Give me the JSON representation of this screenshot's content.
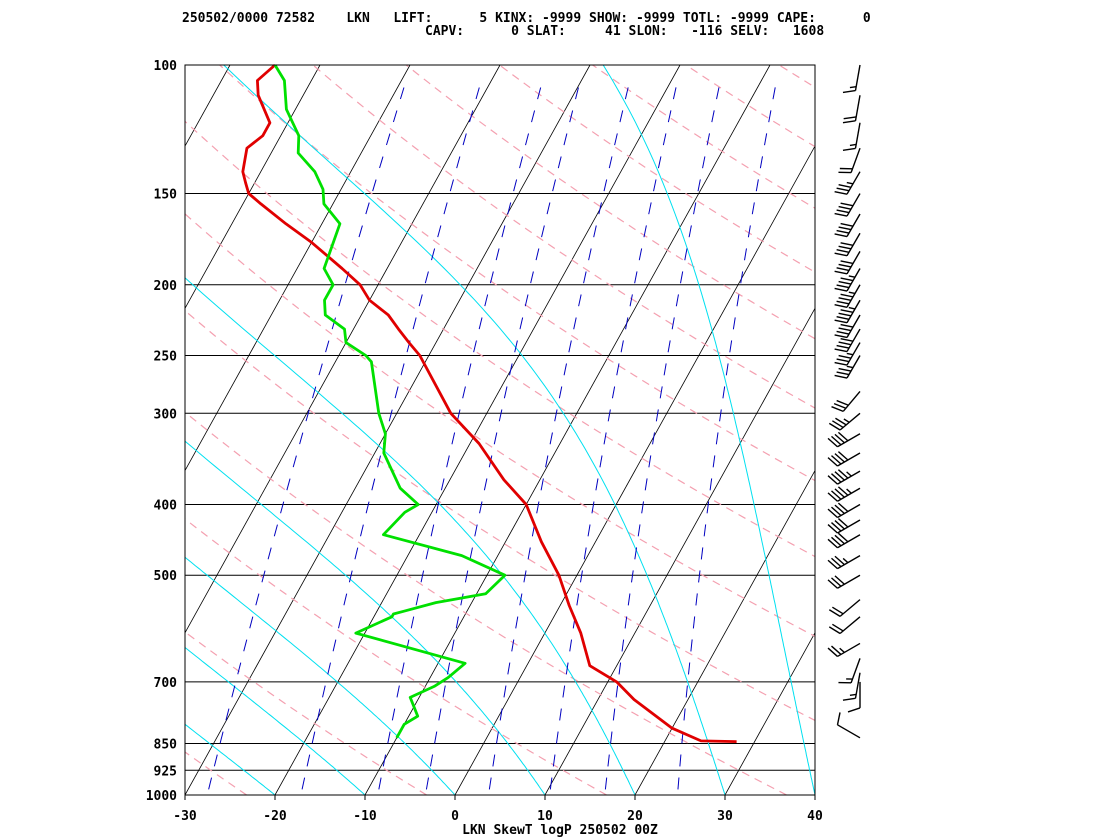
{
  "header": {
    "line1": "250502/0000 72582    LKN   LIFT:      5 KINX: -9999 SHOW: -9999 TOTL: -9999 CAPE:      0",
    "line2": "CAPV:      0 SLAT:     41 SLON:   -116 SELV:   1608"
  },
  "colors": {
    "isotherm": "#000000",
    "isobar": "#000000",
    "dry_adiabat": "#f4a0b0",
    "moist_adiabat": "#00e0f0",
    "mixing_ratio": "#0000c0",
    "temperature": "#e00000",
    "dewpoint": "#00e000",
    "wind": "#000000"
  },
  "chart_data": {
    "type": "line",
    "title": "",
    "xlabel": "LKN SkewT logP 250502 00Z",
    "ylabel": "",
    "xlim": [
      -30,
      40
    ],
    "ylim": [
      1000,
      100
    ],
    "y_scale": "log",
    "grid": true,
    "x_ticks": [
      -30,
      -20,
      -10,
      0,
      10,
      20,
      30,
      40
    ],
    "p_ticks": [
      100,
      150,
      200,
      250,
      300,
      400,
      500,
      700,
      850,
      925,
      1000
    ],
    "series": [
      {
        "name": "temperature",
        "points": [
          [
            845,
            28
          ],
          [
            843,
            24
          ],
          [
            810,
            20
          ],
          [
            740,
            14
          ],
          [
            700,
            11
          ],
          [
            665,
            7
          ],
          [
            600,
            4
          ],
          [
            550,
            1
          ],
          [
            500,
            -2
          ],
          [
            450,
            -6
          ],
          [
            400,
            -10
          ],
          [
            370,
            -14
          ],
          [
            330,
            -19
          ],
          [
            300,
            -24
          ],
          [
            250,
            -31
          ],
          [
            240,
            -33
          ],
          [
            230,
            -35
          ],
          [
            220,
            -37
          ],
          [
            210,
            -40
          ],
          [
            200,
            -42
          ],
          [
            190,
            -45
          ],
          [
            175,
            -50
          ],
          [
            165,
            -54
          ],
          [
            155,
            -58
          ],
          [
            150,
            -60
          ],
          [
            145,
            -61
          ],
          [
            140,
            -62
          ],
          [
            130,
            -63
          ],
          [
            125,
            -62
          ],
          [
            120,
            -62
          ],
          [
            110,
            -65
          ],
          [
            105,
            -66
          ],
          [
            100,
            -65
          ]
        ]
      },
      {
        "name": "dewpoint",
        "points": [
          [
            835,
            -10
          ],
          [
            800,
            -10
          ],
          [
            780,
            -9
          ],
          [
            735,
            -11
          ],
          [
            710,
            -9
          ],
          [
            690,
            -8
          ],
          [
            660,
            -7
          ],
          [
            600,
            -21
          ],
          [
            570,
            -18
          ],
          [
            565,
            -18
          ],
          [
            560,
            -17
          ],
          [
            545,
            -14
          ],
          [
            530,
            -9
          ],
          [
            500,
            -8
          ],
          [
            470,
            -14
          ],
          [
            440,
            -24
          ],
          [
            410,
            -23
          ],
          [
            400,
            -22
          ],
          [
            380,
            -25
          ],
          [
            340,
            -29
          ],
          [
            320,
            -30
          ],
          [
            300,
            -32
          ],
          [
            255,
            -36
          ],
          [
            250,
            -37
          ],
          [
            240,
            -40
          ],
          [
            230,
            -41
          ],
          [
            220,
            -44
          ],
          [
            210,
            -45
          ],
          [
            200,
            -45
          ],
          [
            190,
            -47
          ],
          [
            165,
            -48
          ],
          [
            155,
            -51
          ],
          [
            148,
            -52
          ],
          [
            140,
            -54
          ],
          [
            132,
            -57
          ],
          [
            125,
            -58
          ],
          [
            115,
            -61
          ],
          [
            105,
            -63
          ],
          [
            100,
            -65
          ]
        ]
      }
    ],
    "wind_barbs": [
      {
        "p": 835,
        "dir": 300,
        "spd": 10
      },
      {
        "p": 700,
        "dir": 180,
        "spd": 10
      },
      {
        "p": 680,
        "dir": 190,
        "spd": 15
      },
      {
        "p": 650,
        "dir": 200,
        "spd": 15
      },
      {
        "p": 620,
        "dir": 240,
        "spd": 25
      },
      {
        "p": 570,
        "dir": 230,
        "spd": 20
      },
      {
        "p": 540,
        "dir": 230,
        "spd": 20
      },
      {
        "p": 500,
        "dir": 240,
        "spd": 30
      },
      {
        "p": 470,
        "dir": 240,
        "spd": 35
      },
      {
        "p": 440,
        "dir": 240,
        "spd": 40
      },
      {
        "p": 420,
        "dir": 240,
        "spd": 40
      },
      {
        "p": 400,
        "dir": 240,
        "spd": 40
      },
      {
        "p": 380,
        "dir": 240,
        "spd": 45
      },
      {
        "p": 360,
        "dir": 240,
        "spd": 45
      },
      {
        "p": 340,
        "dir": 240,
        "spd": 40
      },
      {
        "p": 320,
        "dir": 240,
        "spd": 40
      },
      {
        "p": 300,
        "dir": 230,
        "spd": 35
      },
      {
        "p": 280,
        "dir": 220,
        "spd": 30
      },
      {
        "p": 250,
        "dir": 210,
        "spd": 35
      },
      {
        "p": 240,
        "dir": 210,
        "spd": 35
      },
      {
        "p": 230,
        "dir": 210,
        "spd": 40
      },
      {
        "p": 220,
        "dir": 210,
        "spd": 40
      },
      {
        "p": 210,
        "dir": 210,
        "spd": 45
      },
      {
        "p": 200,
        "dir": 210,
        "spd": 45
      },
      {
        "p": 190,
        "dir": 210,
        "spd": 45
      },
      {
        "p": 180,
        "dir": 210,
        "spd": 40
      },
      {
        "p": 170,
        "dir": 210,
        "spd": 40
      },
      {
        "p": 160,
        "dir": 210,
        "spd": 40
      },
      {
        "p": 150,
        "dir": 210,
        "spd": 40
      },
      {
        "p": 140,
        "dir": 210,
        "spd": 35
      },
      {
        "p": 130,
        "dir": 200,
        "spd": 20
      },
      {
        "p": 120,
        "dir": 190,
        "spd": 15
      },
      {
        "p": 110,
        "dir": 190,
        "spd": 20
      },
      {
        "p": 100,
        "dir": 190,
        "spd": 15
      }
    ]
  }
}
